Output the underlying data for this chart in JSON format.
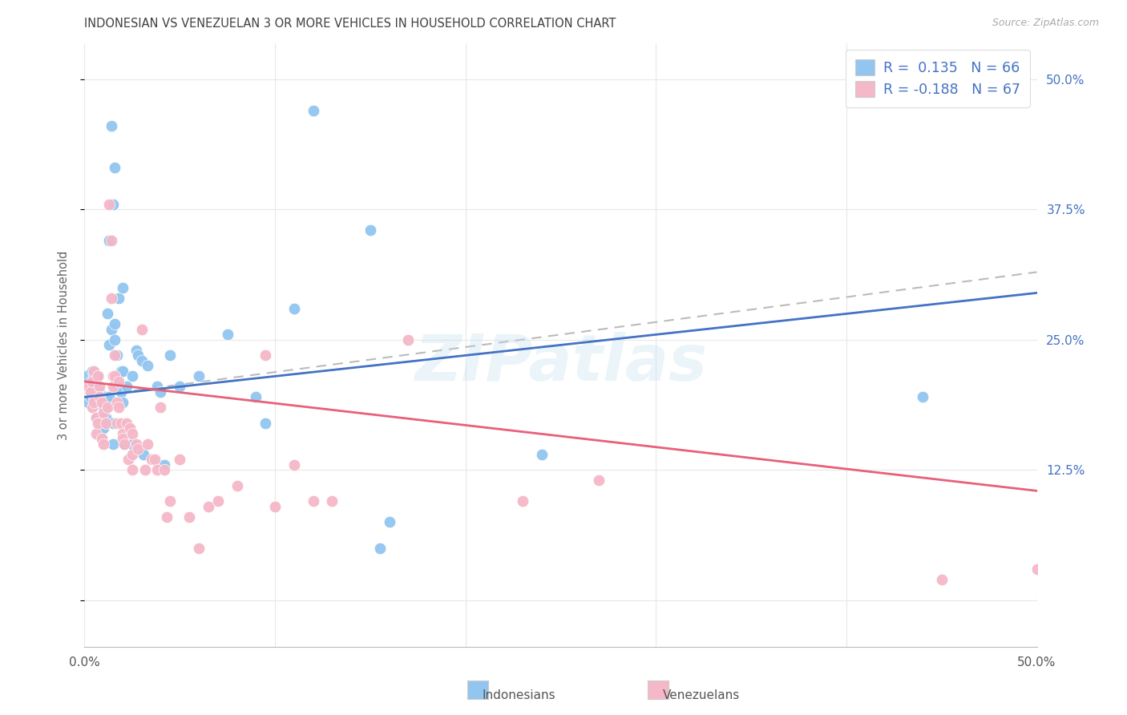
{
  "title": "INDONESIAN VS VENEZUELAN 3 OR MORE VEHICLES IN HOUSEHOLD CORRELATION CHART",
  "source": "Source: ZipAtlas.com",
  "ylabel": "3 or more Vehicles in Household",
  "blue_color": "#92C5F0",
  "pink_color": "#F5B8C8",
  "blue_line_color": "#4472C4",
  "pink_line_color": "#E8607A",
  "dashed_line_color": "#BBBBBB",
  "grid_color": "#E8E8E8",
  "title_color": "#404040",
  "right_axis_color": "#4472C4",
  "legend_blue_label": "R =  0.135   N = 66",
  "legend_pink_label": "R = -0.188   N = 67",
  "watermark": "ZIPatlas",
  "xmin": 0.0,
  "xmax": 0.5,
  "ymin": -0.045,
  "ymax": 0.535,
  "indonesian_points": [
    [
      0.001,
      0.215
    ],
    [
      0.002,
      0.19
    ],
    [
      0.003,
      0.195
    ],
    [
      0.003,
      0.21
    ],
    [
      0.004,
      0.2
    ],
    [
      0.004,
      0.22
    ],
    [
      0.005,
      0.215
    ],
    [
      0.005,
      0.195
    ],
    [
      0.006,
      0.205
    ],
    [
      0.006,
      0.175
    ],
    [
      0.007,
      0.215
    ],
    [
      0.007,
      0.195
    ],
    [
      0.008,
      0.2
    ],
    [
      0.008,
      0.175
    ],
    [
      0.009,
      0.195
    ],
    [
      0.009,
      0.165
    ],
    [
      0.009,
      0.155
    ],
    [
      0.01,
      0.185
    ],
    [
      0.01,
      0.165
    ],
    [
      0.011,
      0.175
    ],
    [
      0.011,
      0.195
    ],
    [
      0.012,
      0.275
    ],
    [
      0.013,
      0.245
    ],
    [
      0.013,
      0.195
    ],
    [
      0.014,
      0.26
    ],
    [
      0.015,
      0.15
    ],
    [
      0.015,
      0.17
    ],
    [
      0.016,
      0.265
    ],
    [
      0.016,
      0.25
    ],
    [
      0.017,
      0.235
    ],
    [
      0.018,
      0.205
    ],
    [
      0.019,
      0.22
    ],
    [
      0.019,
      0.2
    ],
    [
      0.02,
      0.22
    ],
    [
      0.02,
      0.19
    ],
    [
      0.021,
      0.15
    ],
    [
      0.022,
      0.205
    ],
    [
      0.025,
      0.15
    ],
    [
      0.025,
      0.215
    ],
    [
      0.027,
      0.24
    ],
    [
      0.028,
      0.235
    ],
    [
      0.03,
      0.23
    ],
    [
      0.031,
      0.14
    ],
    [
      0.033,
      0.225
    ],
    [
      0.038,
      0.205
    ],
    [
      0.04,
      0.2
    ],
    [
      0.042,
      0.13
    ],
    [
      0.045,
      0.235
    ],
    [
      0.05,
      0.205
    ],
    [
      0.06,
      0.215
    ],
    [
      0.075,
      0.255
    ],
    [
      0.09,
      0.195
    ],
    [
      0.095,
      0.17
    ],
    [
      0.11,
      0.28
    ],
    [
      0.12,
      0.47
    ],
    [
      0.15,
      0.355
    ],
    [
      0.155,
      0.05
    ],
    [
      0.16,
      0.075
    ],
    [
      0.24,
      0.14
    ],
    [
      0.44,
      0.195
    ],
    [
      0.014,
      0.455
    ],
    [
      0.016,
      0.415
    ],
    [
      0.015,
      0.38
    ],
    [
      0.013,
      0.345
    ],
    [
      0.018,
      0.29
    ],
    [
      0.02,
      0.3
    ]
  ],
  "venezuelan_points": [
    [
      0.002,
      0.205
    ],
    [
      0.003,
      0.2
    ],
    [
      0.004,
      0.21
    ],
    [
      0.004,
      0.185
    ],
    [
      0.005,
      0.22
    ],
    [
      0.005,
      0.19
    ],
    [
      0.006,
      0.175
    ],
    [
      0.006,
      0.16
    ],
    [
      0.007,
      0.215
    ],
    [
      0.007,
      0.17
    ],
    [
      0.008,
      0.205
    ],
    [
      0.008,
      0.195
    ],
    [
      0.009,
      0.19
    ],
    [
      0.009,
      0.155
    ],
    [
      0.01,
      0.18
    ],
    [
      0.01,
      0.15
    ],
    [
      0.011,
      0.17
    ],
    [
      0.012,
      0.185
    ],
    [
      0.013,
      0.38
    ],
    [
      0.014,
      0.345
    ],
    [
      0.014,
      0.29
    ],
    [
      0.015,
      0.215
    ],
    [
      0.015,
      0.205
    ],
    [
      0.016,
      0.235
    ],
    [
      0.016,
      0.215
    ],
    [
      0.017,
      0.19
    ],
    [
      0.017,
      0.17
    ],
    [
      0.018,
      0.21
    ],
    [
      0.018,
      0.185
    ],
    [
      0.019,
      0.17
    ],
    [
      0.02,
      0.16
    ],
    [
      0.02,
      0.155
    ],
    [
      0.021,
      0.15
    ],
    [
      0.022,
      0.17
    ],
    [
      0.023,
      0.135
    ],
    [
      0.024,
      0.165
    ],
    [
      0.025,
      0.16
    ],
    [
      0.025,
      0.14
    ],
    [
      0.025,
      0.125
    ],
    [
      0.027,
      0.15
    ],
    [
      0.028,
      0.145
    ],
    [
      0.03,
      0.26
    ],
    [
      0.032,
      0.125
    ],
    [
      0.033,
      0.15
    ],
    [
      0.035,
      0.135
    ],
    [
      0.037,
      0.135
    ],
    [
      0.038,
      0.125
    ],
    [
      0.04,
      0.185
    ],
    [
      0.042,
      0.125
    ],
    [
      0.043,
      0.08
    ],
    [
      0.045,
      0.095
    ],
    [
      0.05,
      0.135
    ],
    [
      0.055,
      0.08
    ],
    [
      0.06,
      0.05
    ],
    [
      0.065,
      0.09
    ],
    [
      0.07,
      0.095
    ],
    [
      0.08,
      0.11
    ],
    [
      0.095,
      0.235
    ],
    [
      0.1,
      0.09
    ],
    [
      0.11,
      0.13
    ],
    [
      0.12,
      0.095
    ],
    [
      0.13,
      0.095
    ],
    [
      0.17,
      0.25
    ],
    [
      0.23,
      0.095
    ],
    [
      0.27,
      0.115
    ],
    [
      0.45,
      0.02
    ],
    [
      0.5,
      0.03
    ]
  ],
  "indo_trend": [
    0.195,
    0.295
  ],
  "vene_trend": [
    0.21,
    0.105
  ],
  "dashed_trend_start_x": 0.0,
  "dashed_trend_end_x": 0.5,
  "dashed_trend_start_y": 0.195,
  "dashed_trend_end_y": 0.315
}
